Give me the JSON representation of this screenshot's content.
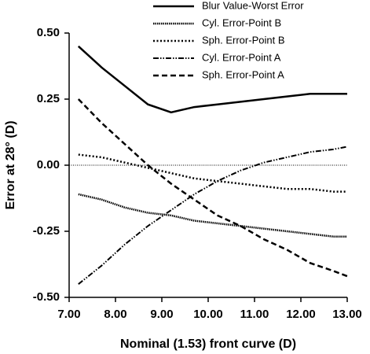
{
  "chart_data": {
    "type": "line",
    "xlabel": "Nominal (1.53) front curve (D)",
    "ylabel": "Error at 28° (D)",
    "x": [
      7.2,
      7.7,
      8.2,
      8.7,
      9.2,
      9.7,
      10.2,
      10.7,
      11.2,
      11.7,
      12.2,
      12.7,
      13.0
    ],
    "series": [
      {
        "name": "Blur Value-Worst Error",
        "color": "#000000",
        "style": "solid",
        "values": [
          0.45,
          0.37,
          0.3,
          0.23,
          0.2,
          0.22,
          0.23,
          0.24,
          0.25,
          0.26,
          0.27,
          0.27,
          0.27
        ]
      },
      {
        "name": "Cyl. Error-Point B",
        "color": "#000000",
        "style": "dense-dotted",
        "values": [
          -0.11,
          -0.13,
          -0.16,
          -0.18,
          -0.19,
          -0.21,
          -0.22,
          -0.23,
          -0.24,
          -0.25,
          -0.26,
          -0.27,
          -0.27
        ]
      },
      {
        "name": "Sph. Error-Point B",
        "color": "#000000",
        "style": "dotted",
        "values": [
          0.04,
          0.03,
          0.01,
          -0.01,
          -0.03,
          -0.05,
          -0.06,
          -0.07,
          -0.08,
          -0.09,
          -0.09,
          -0.1,
          -0.1
        ]
      },
      {
        "name": "Cyl. Error-Point A",
        "color": "#000000",
        "style": "dash-dot-dot",
        "values": [
          -0.45,
          -0.38,
          -0.3,
          -0.23,
          -0.17,
          -0.11,
          -0.06,
          -0.02,
          0.01,
          0.03,
          0.05,
          0.06,
          0.07
        ]
      },
      {
        "name": "Sph. Error-Point A",
        "color": "#000000",
        "style": "dashed",
        "values": [
          0.25,
          0.16,
          0.08,
          0.0,
          -0.07,
          -0.13,
          -0.19,
          -0.23,
          -0.28,
          -0.32,
          -0.37,
          -0.4,
          -0.42
        ]
      }
    ],
    "xlim": [
      7,
      13
    ],
    "ylim": [
      -0.5,
      0.5
    ],
    "xticks": [
      {
        "value": 7,
        "label": "7.00"
      },
      {
        "value": 8,
        "label": "8.00"
      },
      {
        "value": 9,
        "label": "9.00"
      },
      {
        "value": 10,
        "label": "10.00"
      },
      {
        "value": 11,
        "label": "11.00"
      },
      {
        "value": 12,
        "label": "12.00"
      },
      {
        "value": 13,
        "label": "13.00"
      }
    ],
    "yticks": [
      {
        "value": -0.5,
        "label": "-0.50"
      },
      {
        "value": -0.25,
        "label": "-0.25"
      },
      {
        "value": 0,
        "label": "0.00"
      },
      {
        "value": 0.25,
        "label": "0.25"
      },
      {
        "value": 0.5,
        "label": "0.50"
      }
    ],
    "zero_line": true,
    "legend": "upper right"
  }
}
